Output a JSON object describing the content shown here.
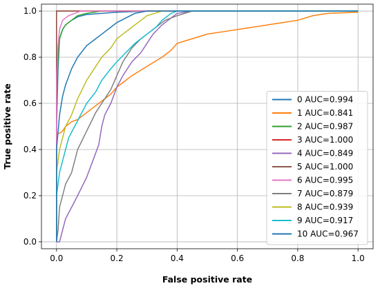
{
  "chart_data": {
    "type": "line",
    "title": "",
    "xlabel": "False positive rate",
    "ylabel": "True positive rate",
    "xlim": [
      -0.05,
      1.05
    ],
    "ylim": [
      -0.03,
      1.03
    ],
    "xticks": [
      "0.0",
      "0.2",
      "0.4",
      "0.6",
      "0.8",
      "1.0"
    ],
    "yticks": [
      "0.0",
      "0.2",
      "0.4",
      "0.6",
      "0.8",
      "1.0"
    ],
    "grid": true,
    "legend_position": "lower-right",
    "series": [
      {
        "name": "0 AUC=0.994",
        "color": "#1f77b4",
        "points": [
          [
            0,
            0
          ],
          [
            0,
            0.5
          ],
          [
            0.005,
            0.75
          ],
          [
            0.01,
            0.88
          ],
          [
            0.02,
            0.92
          ],
          [
            0.03,
            0.94
          ],
          [
            0.05,
            0.96
          ],
          [
            0.07,
            0.975
          ],
          [
            0.1,
            0.985
          ],
          [
            0.15,
            0.99
          ],
          [
            0.2,
            0.995
          ],
          [
            0.3,
            1.0
          ],
          [
            1.0,
            1.0
          ]
        ]
      },
      {
        "name": "1 AUC=0.841",
        "color": "#ff7f0e",
        "points": [
          [
            0,
            0
          ],
          [
            0,
            0.47
          ],
          [
            0.01,
            0.47
          ],
          [
            0.02,
            0.48
          ],
          [
            0.03,
            0.5
          ],
          [
            0.05,
            0.52
          ],
          [
            0.07,
            0.53
          ],
          [
            0.1,
            0.56
          ],
          [
            0.12,
            0.58
          ],
          [
            0.15,
            0.61
          ],
          [
            0.18,
            0.64
          ],
          [
            0.2,
            0.67
          ],
          [
            0.22,
            0.69
          ],
          [
            0.25,
            0.72
          ],
          [
            0.3,
            0.76
          ],
          [
            0.35,
            0.8
          ],
          [
            0.38,
            0.83
          ],
          [
            0.4,
            0.86
          ],
          [
            0.45,
            0.88
          ],
          [
            0.5,
            0.9
          ],
          [
            0.55,
            0.91
          ],
          [
            0.6,
            0.92
          ],
          [
            0.65,
            0.93
          ],
          [
            0.7,
            0.94
          ],
          [
            0.75,
            0.95
          ],
          [
            0.8,
            0.96
          ],
          [
            0.85,
            0.98
          ],
          [
            0.9,
            0.99
          ],
          [
            1.0,
            0.995
          ]
        ]
      },
      {
        "name": "2 AUC=0.987",
        "color": "#2ca02c",
        "points": [
          [
            0,
            0
          ],
          [
            0,
            0.6
          ],
          [
            0.005,
            0.8
          ],
          [
            0.01,
            0.88
          ],
          [
            0.02,
            0.92
          ],
          [
            0.03,
            0.94
          ],
          [
            0.05,
            0.96
          ],
          [
            0.07,
            0.98
          ],
          [
            0.1,
            0.99
          ],
          [
            0.15,
            1.0
          ],
          [
            1.0,
            1.0
          ]
        ]
      },
      {
        "name": "3 AUC=1.000",
        "color": "#d62728",
        "points": [
          [
            0,
            0
          ],
          [
            0,
            1.0
          ],
          [
            1.0,
            1.0
          ]
        ]
      },
      {
        "name": "4 AUC=0.849",
        "color": "#9467bd",
        "points": [
          [
            0,
            0
          ],
          [
            0.01,
            0.0
          ],
          [
            0.02,
            0.05
          ],
          [
            0.03,
            0.1
          ],
          [
            0.05,
            0.15
          ],
          [
            0.07,
            0.2
          ],
          [
            0.1,
            0.28
          ],
          [
            0.12,
            0.35
          ],
          [
            0.14,
            0.42
          ],
          [
            0.15,
            0.5
          ],
          [
            0.16,
            0.55
          ],
          [
            0.18,
            0.6
          ],
          [
            0.2,
            0.67
          ],
          [
            0.22,
            0.72
          ],
          [
            0.25,
            0.78
          ],
          [
            0.28,
            0.82
          ],
          [
            0.3,
            0.86
          ],
          [
            0.32,
            0.9
          ],
          [
            0.35,
            0.94
          ],
          [
            0.38,
            0.97
          ],
          [
            0.4,
            0.99
          ],
          [
            0.45,
            1.0
          ],
          [
            1.0,
            1.0
          ]
        ]
      },
      {
        "name": "5 AUC=1.000",
        "color": "#8c564b",
        "points": [
          [
            0,
            0
          ],
          [
            0,
            1.0
          ],
          [
            1.0,
            1.0
          ]
        ]
      },
      {
        "name": "6 AUC=0.995",
        "color": "#e377c2",
        "points": [
          [
            0,
            0
          ],
          [
            0,
            0.7
          ],
          [
            0.005,
            0.85
          ],
          [
            0.01,
            0.92
          ],
          [
            0.02,
            0.96
          ],
          [
            0.04,
            0.98
          ],
          [
            0.06,
            0.99
          ],
          [
            0.08,
            1.0
          ],
          [
            1.0,
            1.0
          ]
        ]
      },
      {
        "name": "7 AUC=0.879",
        "color": "#7f7f7f",
        "points": [
          [
            0,
            0
          ],
          [
            0.005,
            0.05
          ],
          [
            0.01,
            0.15
          ],
          [
            0.02,
            0.2
          ],
          [
            0.03,
            0.25
          ],
          [
            0.05,
            0.3
          ],
          [
            0.07,
            0.4
          ],
          [
            0.1,
            0.48
          ],
          [
            0.13,
            0.56
          ],
          [
            0.15,
            0.6
          ],
          [
            0.18,
            0.66
          ],
          [
            0.2,
            0.72
          ],
          [
            0.22,
            0.78
          ],
          [
            0.25,
            0.84
          ],
          [
            0.28,
            0.88
          ],
          [
            0.3,
            0.9
          ],
          [
            0.33,
            0.93
          ],
          [
            0.36,
            0.96
          ],
          [
            0.4,
            0.98
          ],
          [
            0.45,
            1.0
          ],
          [
            1.0,
            1.0
          ]
        ]
      },
      {
        "name": "8 AUC=0.939",
        "color": "#bcbd22",
        "points": [
          [
            0,
            0
          ],
          [
            0,
            0.3
          ],
          [
            0.01,
            0.4
          ],
          [
            0.02,
            0.45
          ],
          [
            0.03,
            0.5
          ],
          [
            0.05,
            0.55
          ],
          [
            0.07,
            0.62
          ],
          [
            0.1,
            0.7
          ],
          [
            0.13,
            0.76
          ],
          [
            0.15,
            0.8
          ],
          [
            0.18,
            0.84
          ],
          [
            0.2,
            0.88
          ],
          [
            0.22,
            0.9
          ],
          [
            0.25,
            0.93
          ],
          [
            0.28,
            0.96
          ],
          [
            0.3,
            0.98
          ],
          [
            0.35,
            1.0
          ],
          [
            1.0,
            1.0
          ]
        ]
      },
      {
        "name": "9 AUC=0.917",
        "color": "#17becf",
        "points": [
          [
            0,
            0
          ],
          [
            0,
            0.2
          ],
          [
            0.01,
            0.3
          ],
          [
            0.02,
            0.35
          ],
          [
            0.04,
            0.45
          ],
          [
            0.06,
            0.5
          ],
          [
            0.08,
            0.55
          ],
          [
            0.1,
            0.6
          ],
          [
            0.13,
            0.65
          ],
          [
            0.15,
            0.7
          ],
          [
            0.18,
            0.75
          ],
          [
            0.2,
            0.78
          ],
          [
            0.23,
            0.82
          ],
          [
            0.26,
            0.86
          ],
          [
            0.3,
            0.9
          ],
          [
            0.33,
            0.93
          ],
          [
            0.35,
            0.96
          ],
          [
            0.38,
            0.99
          ],
          [
            0.4,
            1.0
          ],
          [
            1.0,
            1.0
          ]
        ]
      },
      {
        "name": "10 AUC=0.967",
        "color": "#1f77b4",
        "points": [
          [
            0,
            0
          ],
          [
            0,
            0.4
          ],
          [
            0.01,
            0.55
          ],
          [
            0.02,
            0.63
          ],
          [
            0.03,
            0.68
          ],
          [
            0.05,
            0.75
          ],
          [
            0.07,
            0.8
          ],
          [
            0.1,
            0.85
          ],
          [
            0.13,
            0.88
          ],
          [
            0.15,
            0.9
          ],
          [
            0.18,
            0.93
          ],
          [
            0.2,
            0.95
          ],
          [
            0.23,
            0.97
          ],
          [
            0.26,
            0.99
          ],
          [
            0.3,
            1.0
          ],
          [
            1.0,
            1.0
          ]
        ]
      }
    ]
  }
}
